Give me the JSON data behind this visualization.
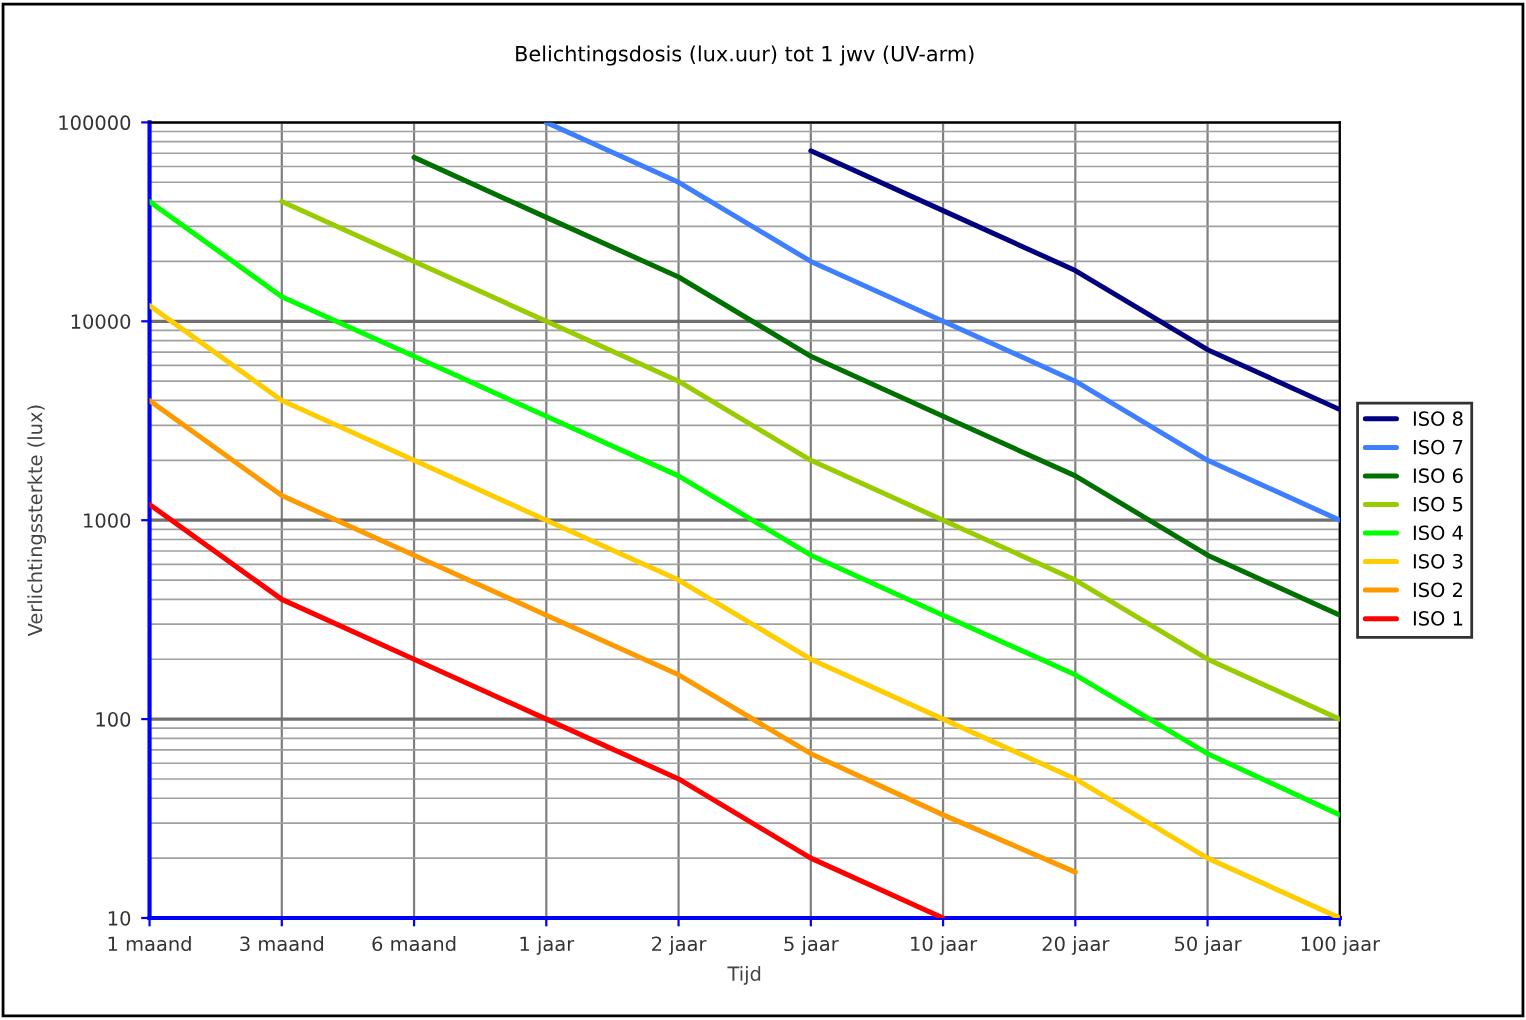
{
  "chart_data": {
    "type": "line",
    "title": "Belichtingsdosis (lux.uur) tot 1 jwv (UV-arm)",
    "xlabel": "Tijd",
    "ylabel": "Verlichtingssterkte (lux)",
    "categories": [
      "1 maand",
      "3 maand",
      "6 maand",
      "1 jaar",
      "2 jaar",
      "5 jaar",
      "10 jaar",
      "20 jaar",
      "50 jaar",
      "100 jaar"
    ],
    "series": [
      {
        "name": "ISO 8",
        "color": "#000080",
        "values": [
          null,
          null,
          null,
          null,
          null,
          72000,
          36000,
          18000,
          7200,
          3600
        ]
      },
      {
        "name": "ISO 7",
        "color": "#3f7fff",
        "values": [
          null,
          null,
          null,
          100000,
          50000,
          20000,
          10000,
          5000,
          2000,
          1000
        ]
      },
      {
        "name": "ISO 6",
        "color": "#007000",
        "values": [
          null,
          null,
          66700,
          33300,
          16700,
          6670,
          3330,
          1670,
          667,
          333
        ]
      },
      {
        "name": "ISO 5",
        "color": "#99cc00",
        "values": [
          null,
          40000,
          20000,
          10000,
          5000,
          2000,
          1000,
          500,
          200,
          100
        ]
      },
      {
        "name": "ISO 4",
        "color": "#00ff00",
        "values": [
          40000,
          13300,
          6670,
          3330,
          1670,
          667,
          333,
          167,
          67,
          33
        ]
      },
      {
        "name": "ISO 3",
        "color": "#ffcc00",
        "values": [
          12000,
          4000,
          2000,
          1000,
          500,
          200,
          100,
          50,
          20,
          10
        ]
      },
      {
        "name": "ISO 2",
        "color": "#ff9900",
        "values": [
          4000,
          1330,
          667,
          333,
          167,
          67,
          33,
          17,
          null,
          null
        ]
      },
      {
        "name": "ISO 1",
        "color": "#ff0000",
        "values": [
          1200,
          400,
          200,
          100,
          50,
          20,
          10,
          null,
          null,
          null
        ]
      }
    ],
    "log": true,
    "ylim": [
      10,
      100000
    ],
    "yticks": [
      10,
      100,
      1000,
      10000,
      100000
    ],
    "grid": true,
    "legend": "right",
    "marker": "none",
    "line_style": "solid"
  }
}
